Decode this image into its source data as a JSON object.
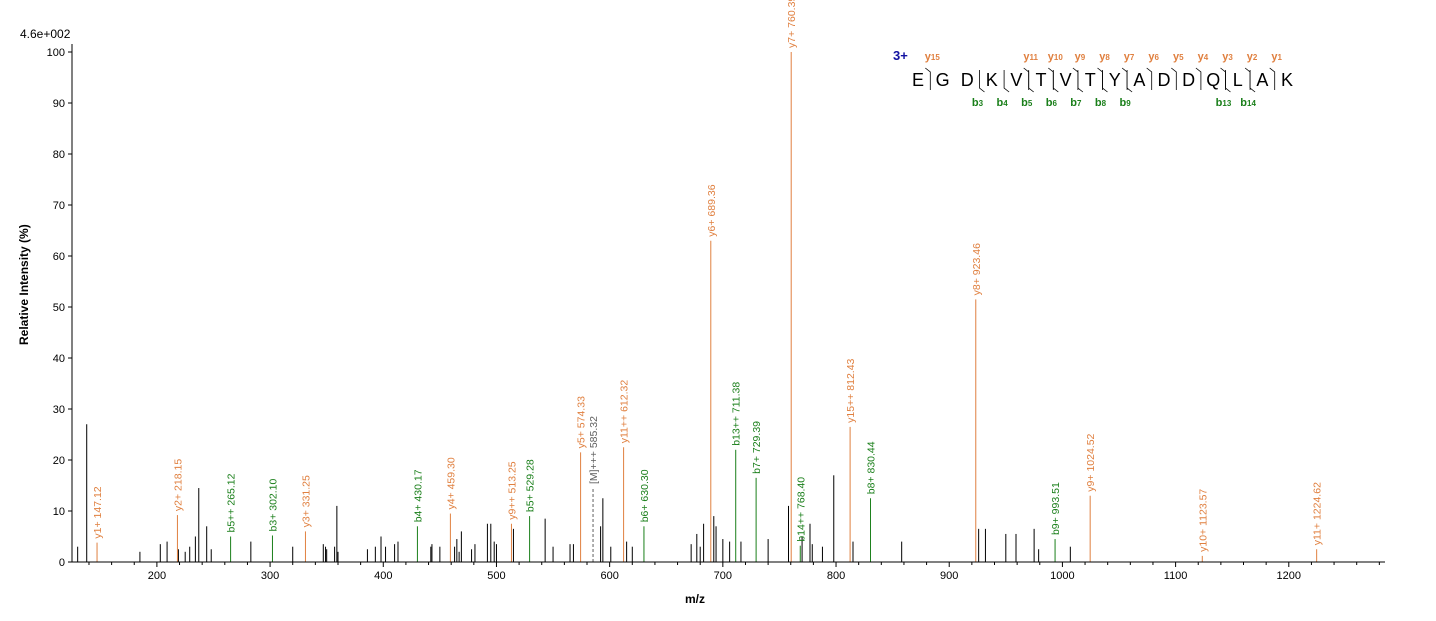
{
  "chart_data": {
    "type": "bar",
    "title": "",
    "max_intensity_label": "4.6e+002",
    "xlabel": "m/z",
    "ylabel": "Relative   Intensity (%)",
    "xlim": [
      125,
      1285
    ],
    "ylim": [
      0,
      100
    ],
    "x_ticks": [
      200,
      300,
      400,
      500,
      600,
      700,
      800,
      900,
      1000,
      1100,
      1200
    ],
    "y_ticks": [
      0,
      10,
      20,
      30,
      40,
      50,
      60,
      70,
      80,
      90,
      100
    ],
    "colors": {
      "y": "#e08040",
      "b": "#1a7f1a",
      "other": "#000000",
      "precursor": "#606060",
      "charge": "#1010a0"
    },
    "annotated_peaks": [
      {
        "mz": 147.12,
        "intensity": 3.8,
        "label": "y1+ 147.12",
        "ion": "y"
      },
      {
        "mz": 218.15,
        "intensity": 9.2,
        "label": "y2+ 218.15",
        "ion": "y"
      },
      {
        "mz": 265.12,
        "intensity": 5.0,
        "label": "b5++ 265.12",
        "ion": "b"
      },
      {
        "mz": 302.1,
        "intensity": 5.2,
        "label": "b3+ 302.10",
        "ion": "b"
      },
      {
        "mz": 331.25,
        "intensity": 6.0,
        "label": "y3+ 331.25",
        "ion": "y"
      },
      {
        "mz": 430.17,
        "intensity": 7.0,
        "label": "b4+ 430.17",
        "ion": "b"
      },
      {
        "mz": 459.3,
        "intensity": 9.5,
        "label": "y4+ 459.30",
        "ion": "y"
      },
      {
        "mz": 513.25,
        "intensity": 7.5,
        "label": "y9++ 513.25",
        "ion": "y"
      },
      {
        "mz": 529.28,
        "intensity": 9.0,
        "label": "b5+ 529.28",
        "ion": "b"
      },
      {
        "mz": 574.33,
        "intensity": 21.5,
        "label": "y5+ 574.33",
        "ion": "y"
      },
      {
        "mz": 585.32,
        "intensity": 14.5,
        "label": "[M]+++ 585.32",
        "ion": "precursor"
      },
      {
        "mz": 612.32,
        "intensity": 22.5,
        "label": "y11++ 612.32",
        "ion": "y"
      },
      {
        "mz": 630.3,
        "intensity": 7.0,
        "label": "b6+ 630.30",
        "ion": "b"
      },
      {
        "mz": 689.36,
        "intensity": 63.0,
        "label": "y6+ 689.36",
        "ion": "y"
      },
      {
        "mz": 711.38,
        "intensity": 22.0,
        "label": "b13++ 711.38",
        "ion": "b"
      },
      {
        "mz": 729.39,
        "intensity": 16.5,
        "label": "b7+ 729.39",
        "ion": "b"
      },
      {
        "mz": 760.39,
        "intensity": 100.0,
        "label": "y7+ 760.39",
        "ion": "y"
      },
      {
        "mz": 768.4,
        "intensity": 3.2,
        "label": "b14++ 768.40",
        "ion": "b"
      },
      {
        "mz": 812.43,
        "intensity": 26.5,
        "label": "y15++ 812.43",
        "ion": "y"
      },
      {
        "mz": 830.44,
        "intensity": 12.5,
        "label": "b8+ 830.44",
        "ion": "b"
      },
      {
        "mz": 923.46,
        "intensity": 51.5,
        "label": "y8+ 923.46",
        "ion": "y"
      },
      {
        "mz": 993.51,
        "intensity": 4.5,
        "label": "b9+ 993.51",
        "ion": "b"
      },
      {
        "mz": 1024.52,
        "intensity": 13.0,
        "label": "y9+ 1024.52",
        "ion": "y"
      },
      {
        "mz": 1123.57,
        "intensity": 1.2,
        "label": "y10+ 1123.57",
        "ion": "y"
      },
      {
        "mz": 1224.62,
        "intensity": 2.5,
        "label": "y11+ 1224.62",
        "ion": "y"
      }
    ],
    "unannotated_peaks": [
      [
        130,
        3
      ],
      [
        138,
        27
      ],
      [
        185,
        2
      ],
      [
        203,
        3.5
      ],
      [
        209,
        4
      ],
      [
        219,
        2.5
      ],
      [
        225,
        2
      ],
      [
        229,
        3
      ],
      [
        234,
        5
      ],
      [
        237,
        14.5
      ],
      [
        244,
        7
      ],
      [
        248,
        2.5
      ],
      [
        283,
        4
      ],
      [
        320,
        3
      ],
      [
        347,
        3.5
      ],
      [
        349,
        3
      ],
      [
        350,
        2.5
      ],
      [
        357,
        3
      ],
      [
        359,
        11
      ],
      [
        360,
        2
      ],
      [
        386,
        2.5
      ],
      [
        393,
        3
      ],
      [
        398,
        5
      ],
      [
        402,
        3
      ],
      [
        410,
        3.5
      ],
      [
        413,
        4
      ],
      [
        442,
        3
      ],
      [
        443,
        3.5
      ],
      [
        450,
        3
      ],
      [
        463,
        3
      ],
      [
        465,
        4.5
      ],
      [
        467,
        2
      ],
      [
        469,
        6
      ],
      [
        478,
        2.5
      ],
      [
        481,
        3.5
      ],
      [
        492,
        7.5
      ],
      [
        495,
        7.5
      ],
      [
        498,
        4
      ],
      [
        500,
        3.5
      ],
      [
        515,
        6.5
      ],
      [
        543,
        8.5
      ],
      [
        550,
        3
      ],
      [
        565,
        3.5
      ],
      [
        568,
        3.5
      ],
      [
        592,
        7
      ],
      [
        594,
        12.5
      ],
      [
        601,
        3
      ],
      [
        615,
        4
      ],
      [
        620,
        3
      ],
      [
        672,
        3.5
      ],
      [
        677,
        5.5
      ],
      [
        680,
        3
      ],
      [
        683,
        7.5
      ],
      [
        692,
        9
      ],
      [
        694,
        7
      ],
      [
        700,
        4.5
      ],
      [
        706,
        4
      ],
      [
        716,
        4
      ],
      [
        740,
        4.5
      ],
      [
        758,
        11
      ],
      [
        770,
        5
      ],
      [
        777,
        7.5
      ],
      [
        779,
        3.5
      ],
      [
        788,
        3
      ],
      [
        798,
        17
      ],
      [
        815,
        4
      ],
      [
        858,
        4
      ],
      [
        926,
        6.5
      ],
      [
        932,
        6.5
      ],
      [
        950,
        5.5
      ],
      [
        959,
        5.5
      ],
      [
        975,
        6.5
      ],
      [
        979,
        2.5
      ],
      [
        1007,
        3
      ]
    ],
    "sequence": {
      "charge": "3+",
      "residues": [
        "E",
        "G",
        "D",
        "K",
        "V",
        "T",
        "V",
        "T",
        "Y",
        "A",
        "D",
        "D",
        "Q",
        "L",
        "A",
        "K"
      ],
      "y_ions": [
        {
          "after": 1,
          "num": "15"
        },
        {
          "after": 5,
          "num": "11"
        },
        {
          "after": 6,
          "num": "10"
        },
        {
          "after": 7,
          "num": "9"
        },
        {
          "after": 8,
          "num": "8"
        },
        {
          "after": 9,
          "num": "7"
        },
        {
          "after": 10,
          "num": "6"
        },
        {
          "after": 11,
          "num": "5"
        },
        {
          "after": 12,
          "num": "4"
        },
        {
          "after": 13,
          "num": "3"
        },
        {
          "after": 14,
          "num": "2"
        },
        {
          "after": 15,
          "num": "1"
        }
      ],
      "b_ions": [
        {
          "after": 3,
          "num": "3"
        },
        {
          "after": 4,
          "num": "4"
        },
        {
          "after": 5,
          "num": "5"
        },
        {
          "after": 6,
          "num": "6"
        },
        {
          "after": 7,
          "num": "7"
        },
        {
          "after": 8,
          "num": "8"
        },
        {
          "after": 9,
          "num": "9"
        },
        {
          "after": 13,
          "num": "13"
        },
        {
          "after": 14,
          "num": "14"
        }
      ]
    }
  }
}
